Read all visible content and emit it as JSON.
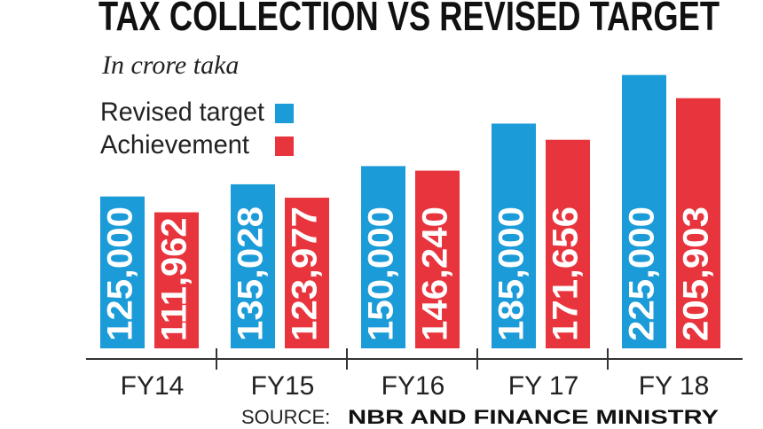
{
  "chart_data": {
    "type": "bar",
    "title": "TAX COLLECTION VS REVISED TARGET",
    "subtitle": "In crore taka",
    "categories": [
      "FY14",
      "FY15",
      "FY16",
      "FY 17",
      "FY 18"
    ],
    "series": [
      {
        "name": "Revised target",
        "color": "#1b9bd7",
        "values": [
          125000,
          135028,
          150000,
          185000,
          225000
        ],
        "value_labels": [
          "125,000",
          "135,028",
          "150,000",
          "185,000",
          "225,000"
        ]
      },
      {
        "name": "Achievement",
        "color": "#e8343d",
        "values": [
          111962,
          123977,
          146240,
          171656,
          205903
        ],
        "value_labels": [
          "111,962",
          "123,977",
          "146,240",
          "171,656",
          "205,903"
        ]
      }
    ],
    "ylim": [
      0,
      232000
    ],
    "source_label": "SOURCE:",
    "source": "NBR AND FINANCE MINISTRY"
  }
}
